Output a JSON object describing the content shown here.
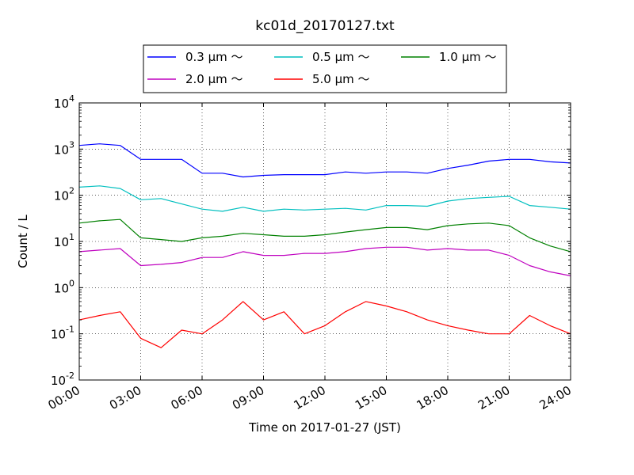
{
  "chart_data": {
    "type": "line",
    "title": "kc01d_20170127.txt",
    "xlabel": "Time on 2017-01-27 (JST)",
    "ylabel": "Count / L",
    "y_scale": "log",
    "ylim": [
      0.01,
      10000
    ],
    "y_ticks": [
      {
        "value": 0.01,
        "base": "10",
        "exp": "-2"
      },
      {
        "value": 0.1,
        "base": "10",
        "exp": "-1"
      },
      {
        "value": 1,
        "base": "10",
        "exp": "0"
      },
      {
        "value": 10,
        "base": "10",
        "exp": "1"
      },
      {
        "value": 100,
        "base": "10",
        "exp": "2"
      },
      {
        "value": 1000,
        "base": "10",
        "exp": "3"
      },
      {
        "value": 10000,
        "base": "10",
        "exp": "4"
      }
    ],
    "xlim": [
      "00:00",
      "24:00"
    ],
    "x_ticks": [
      "00:00",
      "03:00",
      "06:00",
      "09:00",
      "12:00",
      "15:00",
      "18:00",
      "21:00",
      "24:00"
    ],
    "x": [
      "00:00",
      "01:00",
      "02:00",
      "03:00",
      "04:00",
      "05:00",
      "06:00",
      "07:00",
      "08:00",
      "09:00",
      "10:00",
      "11:00",
      "12:00",
      "13:00",
      "14:00",
      "15:00",
      "16:00",
      "17:00",
      "18:00",
      "19:00",
      "20:00",
      "21:00",
      "22:00",
      "23:00",
      "24:00"
    ],
    "grid": true,
    "legend_position": "top-center",
    "series": [
      {
        "name": "0.3 μm ～",
        "color": "#0000ff",
        "values": [
          1200,
          1300,
          1200,
          600,
          600,
          600,
          300,
          300,
          250,
          270,
          280,
          280,
          280,
          320,
          300,
          320,
          320,
          300,
          380,
          450,
          550,
          600,
          600,
          530,
          500
        ]
      },
      {
        "name": "0.5 μm ～",
        "color": "#00bfbf",
        "values": [
          150,
          160,
          140,
          80,
          85,
          65,
          50,
          45,
          55,
          45,
          50,
          48,
          50,
          52,
          48,
          60,
          60,
          58,
          75,
          85,
          90,
          95,
          60,
          55,
          50
        ]
      },
      {
        "name": "1.0 μm ～",
        "color": "#008000",
        "values": [
          25,
          28,
          30,
          12,
          11,
          10,
          12,
          13,
          15,
          14,
          13,
          13,
          14,
          16,
          18,
          20,
          20,
          18,
          22,
          24,
          25,
          22,
          12,
          8,
          6
        ]
      },
      {
        "name": "2.0 μm ～",
        "color": "#bf00bf",
        "values": [
          6,
          6.5,
          7,
          3,
          3.2,
          3.5,
          4.5,
          4.5,
          6,
          5,
          5,
          5.5,
          5.5,
          6,
          7,
          7.5,
          7.5,
          6.5,
          7,
          6.5,
          6.5,
          5,
          3,
          2.2,
          1.8
        ]
      },
      {
        "name": "5.0 μm ～",
        "color": "#ff0000",
        "values": [
          0.2,
          0.25,
          0.3,
          0.08,
          0.05,
          0.12,
          0.1,
          0.2,
          0.5,
          0.2,
          0.3,
          0.1,
          0.15,
          0.3,
          0.5,
          0.4,
          0.3,
          0.2,
          0.15,
          0.12,
          0.1,
          0.1,
          0.25,
          0.15,
          0.1
        ]
      }
    ]
  }
}
